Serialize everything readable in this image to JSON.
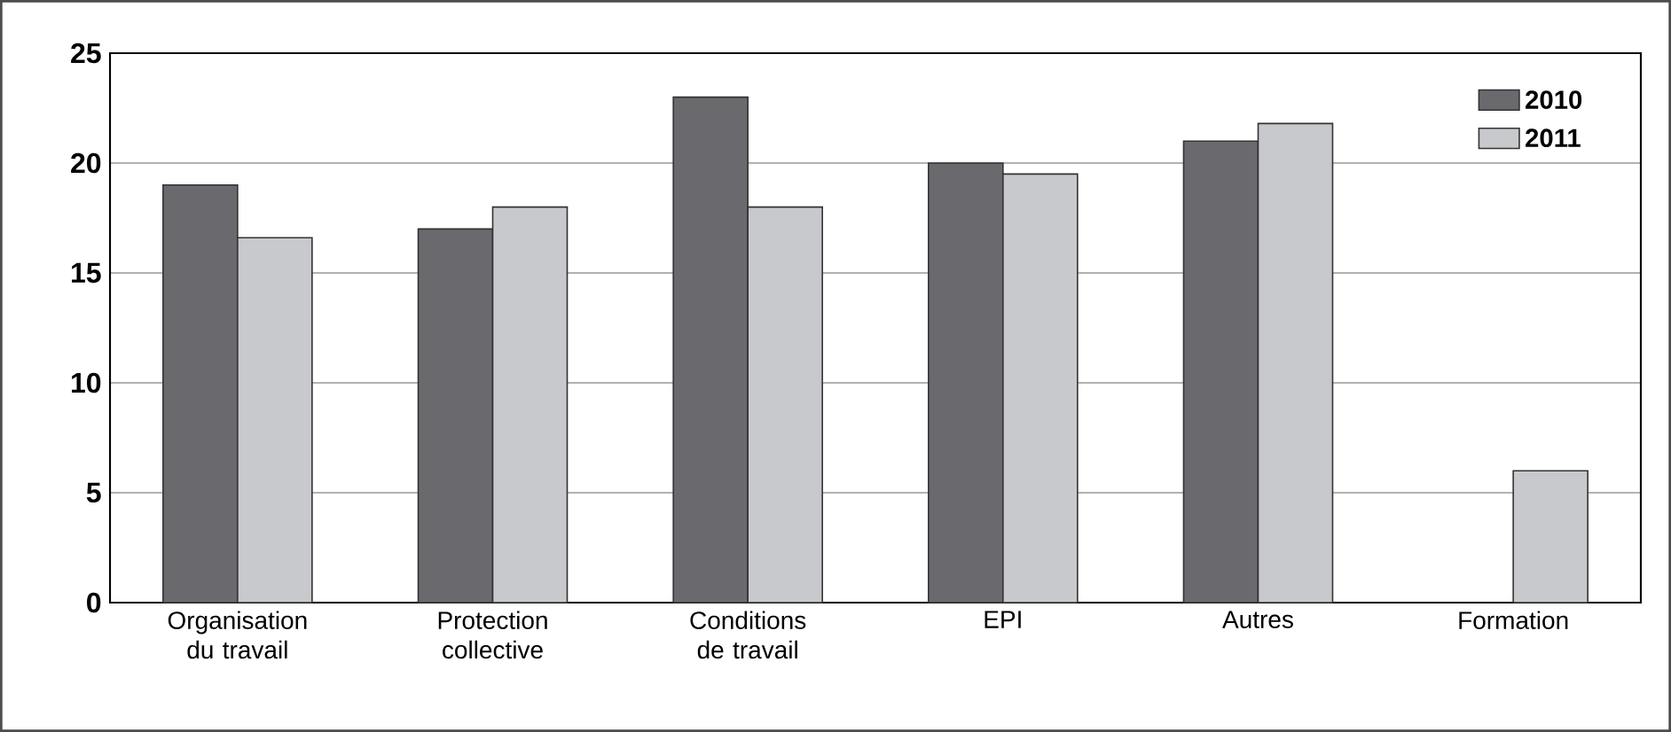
{
  "chart_data": {
    "type": "bar",
    "categories": [
      "Organisation du travail",
      "Protection collective",
      "Conditions de travail",
      "EPI",
      "Autres",
      "Formation"
    ],
    "series": [
      {
        "name": "2010",
        "color": "#6a6a6e",
        "values": [
          19,
          17,
          23,
          20,
          21,
          null
        ]
      },
      {
        "name": "2011",
        "color": "#c8c9cc",
        "values": [
          16.6,
          18,
          18,
          19.5,
          21.8,
          6
        ]
      }
    ],
    "ylim": [
      0,
      25
    ],
    "yticks": [
      0,
      5,
      10,
      15,
      20,
      25
    ],
    "grid": "y",
    "legend": "top right"
  }
}
